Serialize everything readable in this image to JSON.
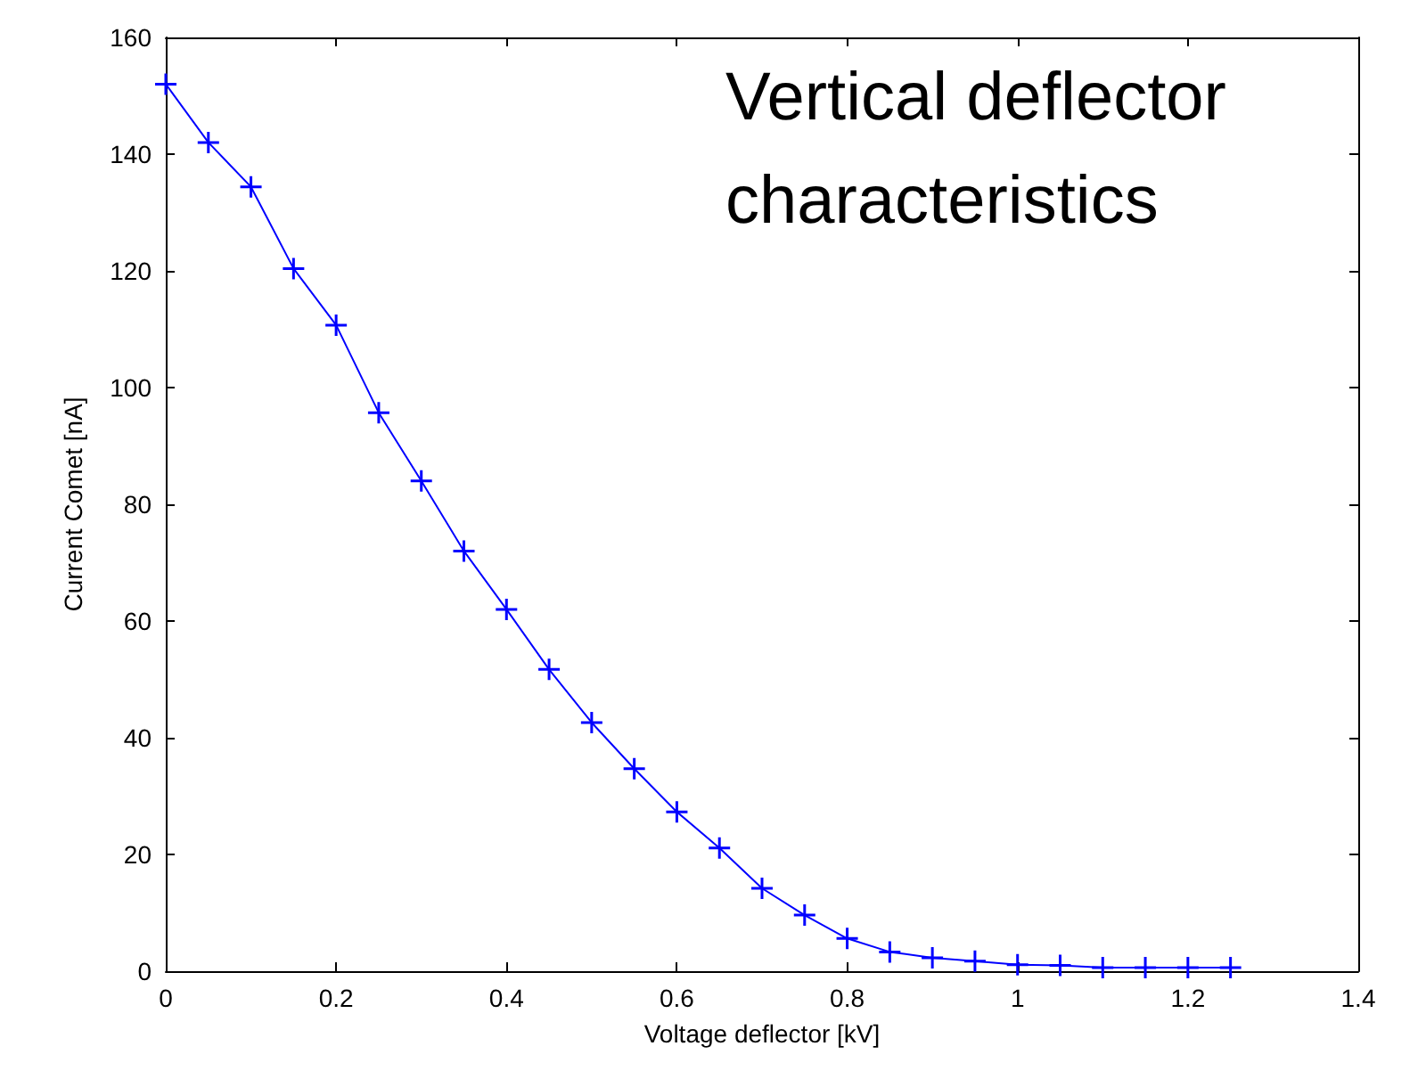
{
  "chart_data": {
    "type": "line",
    "xlabel": "Voltage deflector [kV]",
    "ylabel": "Current Comet [nA]",
    "annotations": [
      "Vertical deflector characteristics"
    ],
    "x": [
      0,
      0.05,
      0.1,
      0.15,
      0.2,
      0.25,
      0.3,
      0.35,
      0.4,
      0.45,
      0.5,
      0.55,
      0.6,
      0.65,
      0.7,
      0.75,
      0.8,
      0.85,
      0.9,
      0.95,
      1.0,
      1.05,
      1.1,
      1.15,
      1.2,
      1.25
    ],
    "series": [
      {
        "color": "#0000ff",
        "values": [
          152,
          142,
          134.4,
          120.4,
          110.7,
          95.7,
          84,
          72,
          62,
          51.7,
          42.6,
          34.7,
          27.3,
          21.1,
          14.2,
          9.6,
          5.6,
          3.3,
          2.3,
          1.7,
          1.1,
          1.0,
          0.6,
          0.6,
          0.6,
          0.6
        ]
      }
    ],
    "xlim": [
      0,
      1.4
    ],
    "xticks": [
      0,
      0.2,
      0.4,
      0.6,
      0.8,
      1,
      1.2,
      1.4
    ],
    "ylim": [
      0,
      160
    ],
    "yticks": [
      0,
      20,
      40,
      60,
      80,
      100,
      120,
      140,
      160
    ],
    "grid": false,
    "marker": "cross",
    "line_style": "solid"
  }
}
